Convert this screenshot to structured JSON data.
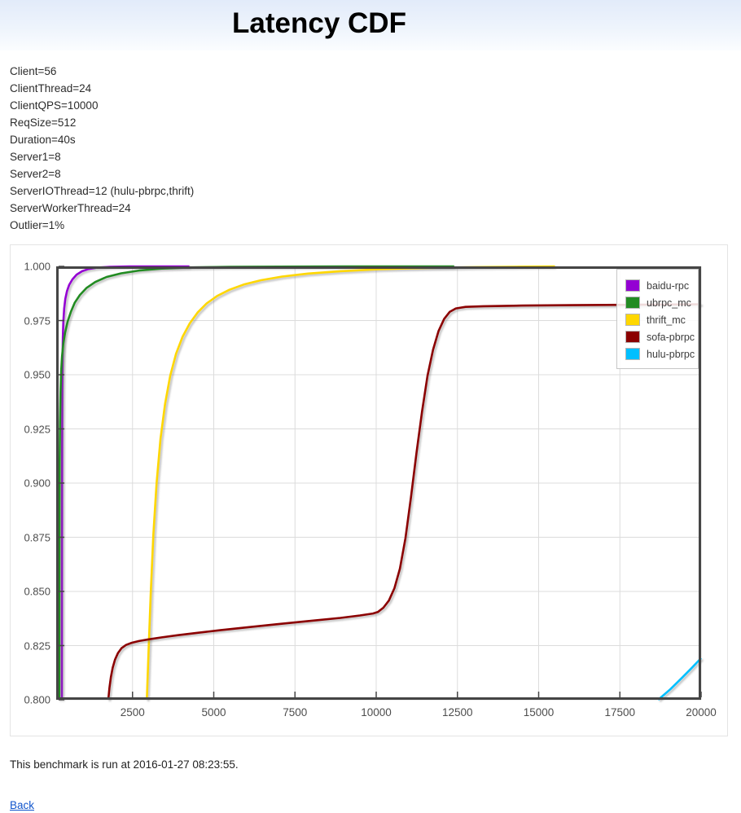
{
  "header": {
    "title": "Latency CDF"
  },
  "params": [
    "Client=56",
    "ClientThread=24",
    "ClientQPS=10000",
    "ReqSize=512",
    "Duration=40s",
    "Server1=8",
    "Server2=8",
    "ServerIOThread=12 (hulu-pbrpc,thrift)",
    "ServerWorkerThread=24",
    "Outlier=1%"
  ],
  "footer": {
    "note": "This benchmark is run at 2016-01-27 08:23:55.",
    "back_label": "Back"
  },
  "chart_data": {
    "type": "line",
    "title": "Latency CDF",
    "xlabel": "",
    "ylabel": "",
    "xlim": [
      150,
      20000
    ],
    "ylim": [
      0.8,
      1.0
    ],
    "x_ticks": [
      2500,
      5000,
      7500,
      10000,
      12500,
      15000,
      17500,
      20000
    ],
    "y_ticks": [
      0.8,
      0.825,
      0.85,
      0.875,
      0.9,
      0.925,
      0.95,
      0.975,
      1.0
    ],
    "grid": true,
    "legend_position": "top-right",
    "grid_color": "#dcdcdc",
    "border_color": "#454545",
    "series": [
      {
        "name": "baidu-rpc",
        "color": "#9400D3",
        "points": [
          [
            322,
            0.8
          ],
          [
            328,
            0.87
          ],
          [
            333,
            0.915
          ],
          [
            338,
            0.942
          ],
          [
            345,
            0.958
          ],
          [
            355,
            0.9675
          ],
          [
            370,
            0.9745
          ],
          [
            395,
            0.9805
          ],
          [
            430,
            0.985
          ],
          [
            480,
            0.9885
          ],
          [
            550,
            0.9915
          ],
          [
            650,
            0.994
          ],
          [
            780,
            0.9962
          ],
          [
            950,
            0.9978
          ],
          [
            1150,
            0.9988
          ],
          [
            1400,
            0.9994
          ],
          [
            1800,
            0.9998
          ],
          [
            2400,
            1.0
          ],
          [
            4250,
            1.0
          ]
        ]
      },
      {
        "name": "ubrpc_mc",
        "color": "#228B22",
        "points": [
          [
            243,
            0.8
          ],
          [
            247,
            0.855
          ],
          [
            252,
            0.888
          ],
          [
            258,
            0.91
          ],
          [
            268,
            0.928
          ],
          [
            282,
            0.9415
          ],
          [
            302,
            0.9515
          ],
          [
            330,
            0.9585
          ],
          [
            370,
            0.9645
          ],
          [
            425,
            0.9695
          ],
          [
            500,
            0.9745
          ],
          [
            600,
            0.979
          ],
          [
            720,
            0.9832
          ],
          [
            880,
            0.9868
          ],
          [
            1080,
            0.99
          ],
          [
            1350,
            0.9928
          ],
          [
            1700,
            0.9951
          ],
          [
            2150,
            0.9968
          ],
          [
            2700,
            0.9981
          ],
          [
            3400,
            0.999
          ],
          [
            4300,
            0.9995
          ],
          [
            5500,
            0.9998
          ],
          [
            7000,
            0.9999
          ],
          [
            9000,
            1.0
          ],
          [
            12400,
            1.0
          ]
        ]
      },
      {
        "name": "thrift_mc",
        "color": "#FFD700",
        "points": [
          [
            2940,
            0.8
          ],
          [
            2990,
            0.821
          ],
          [
            3060,
            0.849
          ],
          [
            3140,
            0.876
          ],
          [
            3240,
            0.9
          ],
          [
            3360,
            0.9205
          ],
          [
            3500,
            0.9365
          ],
          [
            3660,
            0.9495
          ],
          [
            3840,
            0.9597
          ],
          [
            4040,
            0.9675
          ],
          [
            4260,
            0.9737
          ],
          [
            4500,
            0.9787
          ],
          [
            4780,
            0.9829
          ],
          [
            5100,
            0.9863
          ],
          [
            5480,
            0.9892
          ],
          [
            5920,
            0.9916
          ],
          [
            6450,
            0.9936
          ],
          [
            7100,
            0.9953
          ],
          [
            7900,
            0.9967
          ],
          [
            8900,
            0.9978
          ],
          [
            10100,
            0.9987
          ],
          [
            11500,
            0.9993
          ],
          [
            13300,
            0.9997
          ],
          [
            15500,
            1.0
          ]
        ]
      },
      {
        "name": "sofa-pbrpc",
        "color": "#8B0000",
        "points": [
          [
            1755,
            0.8
          ],
          [
            1790,
            0.8055
          ],
          [
            1835,
            0.8105
          ],
          [
            1890,
            0.8148
          ],
          [
            1960,
            0.8185
          ],
          [
            2050,
            0.8215
          ],
          [
            2160,
            0.8238
          ],
          [
            2300,
            0.8253
          ],
          [
            2480,
            0.8263
          ],
          [
            2700,
            0.8271
          ],
          [
            3000,
            0.8279
          ],
          [
            3400,
            0.8288
          ],
          [
            3900,
            0.8298
          ],
          [
            4500,
            0.8309
          ],
          [
            5200,
            0.8321
          ],
          [
            6000,
            0.8334
          ],
          [
            6900,
            0.8348
          ],
          [
            7900,
            0.8363
          ],
          [
            8900,
            0.8378
          ],
          [
            9500,
            0.8389
          ],
          [
            9900,
            0.8398
          ],
          [
            10050,
            0.8405
          ],
          [
            10220,
            0.8425
          ],
          [
            10390,
            0.8458
          ],
          [
            10560,
            0.8515
          ],
          [
            10730,
            0.8605
          ],
          [
            10900,
            0.8745
          ],
          [
            11070,
            0.8935
          ],
          [
            11240,
            0.914
          ],
          [
            11410,
            0.933
          ],
          [
            11580,
            0.9495
          ],
          [
            11750,
            0.9615
          ],
          [
            11920,
            0.9702
          ],
          [
            12090,
            0.9757
          ],
          [
            12260,
            0.979
          ],
          [
            12450,
            0.9806
          ],
          [
            12750,
            0.9813
          ],
          [
            13300,
            0.9816
          ],
          [
            14500,
            0.9819
          ],
          [
            16000,
            0.9821
          ],
          [
            18000,
            0.9823
          ],
          [
            20000,
            0.9825
          ]
        ]
      },
      {
        "name": "hulu-pbrpc",
        "color": "#00BFFF",
        "points": [
          [
            18680,
            0.8
          ],
          [
            19050,
            0.8048
          ],
          [
            19400,
            0.81
          ],
          [
            19700,
            0.8145
          ],
          [
            20000,
            0.8192
          ]
        ]
      }
    ]
  }
}
